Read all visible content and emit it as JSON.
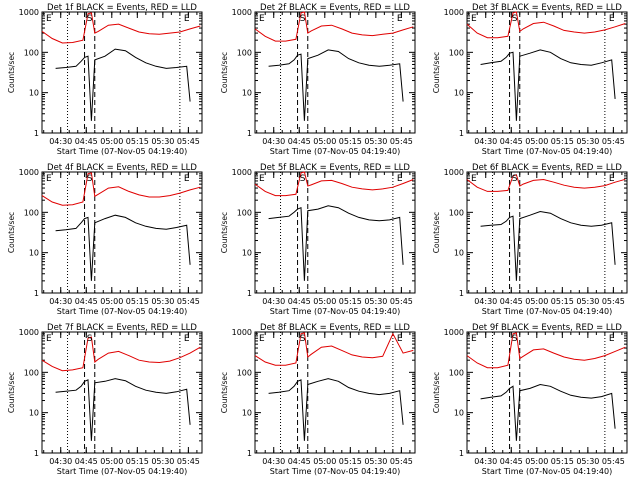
{
  "chart_data": [
    {
      "type": "line",
      "title": "Det 1f BLACK = Events, RED = LLD",
      "xlabel": "Start Time (07-Nov-05 04:19:40)",
      "ylabel": "Counts/sec",
      "yscale": "log",
      "ylim": [
        1,
        1000
      ],
      "yticks": [
        "1",
        "10",
        "100",
        "1000"
      ],
      "xticks": [
        "04:30",
        "04:45",
        "05:00",
        "05:15",
        "05:30",
        "05:45"
      ],
      "markers": [
        "E",
        "S",
        "E"
      ],
      "series": [
        {
          "name": "LLD",
          "color": "#e00000",
          "x": [
            "04:19",
            "04:25",
            "04:31",
            "04:37",
            "04:43",
            "04:46",
            "04:48",
            "04:50",
            "04:52",
            "04:58",
            "05:04",
            "05:10",
            "05:16",
            "05:22",
            "05:28",
            "05:34",
            "05:40",
            "05:46",
            "05:52"
          ],
          "values": [
            330,
            220,
            170,
            175,
            200,
            900,
            950,
            300,
            330,
            470,
            500,
            400,
            320,
            290,
            280,
            300,
            320,
            380,
            450
          ]
        },
        {
          "name": "Events",
          "color": "#000000",
          "x": [
            "04:27",
            "04:33",
            "04:39",
            "04:42",
            "04:44",
            "04:46",
            "04:48",
            "04:50",
            "04:56",
            "05:02",
            "05:08",
            "05:14",
            "05:20",
            "05:26",
            "05:32",
            "05:38",
            "05:44",
            "05:46"
          ],
          "values": [
            40,
            42,
            45,
            60,
            75,
            80,
            2,
            65,
            80,
            120,
            110,
            75,
            55,
            45,
            40,
            42,
            45,
            6
          ]
        }
      ]
    },
    {
      "type": "line",
      "title": "Det 2f BLACK = Events, RED = LLD",
      "xlabel": "Start Time (07-Nov-05 04:19:40)",
      "ylabel": "Counts/sec",
      "yscale": "log",
      "ylim": [
        1,
        1000
      ],
      "yticks": [
        "1",
        "10",
        "100",
        "1000"
      ],
      "xticks": [
        "04:30",
        "04:45",
        "05:00",
        "05:15",
        "05:30",
        "05:45"
      ],
      "markers": [
        "E",
        "S",
        "E"
      ],
      "series": [
        {
          "name": "LLD",
          "color": "#e00000",
          "x": [
            "04:19",
            "04:25",
            "04:31",
            "04:37",
            "04:43",
            "04:46",
            "04:48",
            "04:50",
            "04:52",
            "04:58",
            "05:04",
            "05:10",
            "05:16",
            "05:22",
            "05:28",
            "05:34",
            "05:40",
            "05:46",
            "05:52"
          ],
          "values": [
            380,
            250,
            190,
            190,
            210,
            950,
            1000,
            300,
            340,
            450,
            470,
            380,
            300,
            270,
            260,
            280,
            300,
            360,
            430
          ]
        },
        {
          "name": "Events",
          "color": "#000000",
          "x": [
            "04:27",
            "04:33",
            "04:39",
            "04:42",
            "04:44",
            "04:46",
            "04:48",
            "04:50",
            "04:56",
            "05:02",
            "05:08",
            "05:14",
            "05:20",
            "05:26",
            "05:32",
            "05:38",
            "05:44",
            "05:46"
          ],
          "values": [
            45,
            48,
            52,
            65,
            85,
            90,
            2,
            70,
            85,
            115,
            105,
            70,
            55,
            48,
            45,
            48,
            52,
            6
          ]
        }
      ]
    },
    {
      "type": "line",
      "title": "Det 3f BLACK = Events, RED = LLD",
      "xlabel": "Start Time (07-Nov-05 04:19:40)",
      "ylabel": "Counts/sec",
      "yscale": "log",
      "ylim": [
        1,
        1000
      ],
      "yticks": [
        "1",
        "10",
        "100",
        "1000"
      ],
      "xticks": [
        "04:30",
        "04:45",
        "05:00",
        "05:15",
        "05:30",
        "05:45"
      ],
      "markers": [
        "E",
        "S",
        "E"
      ],
      "series": [
        {
          "name": "LLD",
          "color": "#e00000",
          "x": [
            "04:19",
            "04:25",
            "04:31",
            "04:37",
            "04:43",
            "04:46",
            "04:48",
            "04:50",
            "04:52",
            "04:58",
            "05:04",
            "05:10",
            "05:16",
            "05:22",
            "05:28",
            "05:34",
            "05:40",
            "05:46",
            "05:52"
          ],
          "values": [
            500,
            300,
            230,
            230,
            250,
            950,
            1000,
            330,
            380,
            520,
            560,
            450,
            350,
            320,
            300,
            320,
            360,
            430,
            520
          ]
        },
        {
          "name": "Events",
          "color": "#000000",
          "x": [
            "04:27",
            "04:33",
            "04:39",
            "04:42",
            "04:44",
            "04:46",
            "04:48",
            "04:50",
            "04:56",
            "05:02",
            "05:08",
            "05:14",
            "05:20",
            "05:26",
            "05:32",
            "05:38",
            "05:44",
            "05:46"
          ],
          "values": [
            50,
            55,
            60,
            75,
            95,
            100,
            2,
            80,
            95,
            115,
            100,
            70,
            55,
            50,
            48,
            55,
            65,
            7
          ]
        }
      ]
    },
    {
      "type": "line",
      "title": "Det 4f BLACK = Events, RED = LLD",
      "xlabel": "Start Time (07-Nov-05 04:19:40)",
      "ylabel": "Counts/sec",
      "yscale": "log",
      "ylim": [
        1,
        1000
      ],
      "yticks": [
        "1",
        "10",
        "100",
        "1000"
      ],
      "xticks": [
        "04:30",
        "04:45",
        "05:00",
        "05:15",
        "05:30",
        "05:45"
      ],
      "markers": [
        "E",
        "S",
        "E"
      ],
      "series": [
        {
          "name": "LLD",
          "color": "#e00000",
          "x": [
            "04:19",
            "04:25",
            "04:31",
            "04:37",
            "04:43",
            "04:46",
            "04:48",
            "04:50",
            "04:52",
            "04:58",
            "05:04",
            "05:10",
            "05:16",
            "05:22",
            "05:28",
            "05:34",
            "05:40",
            "05:46",
            "05:52"
          ],
          "values": [
            260,
            180,
            150,
            155,
            180,
            900,
            950,
            250,
            280,
            400,
            430,
            330,
            270,
            240,
            240,
            260,
            300,
            360,
            420
          ]
        },
        {
          "name": "Events",
          "color": "#000000",
          "x": [
            "04:27",
            "04:33",
            "04:39",
            "04:42",
            "04:44",
            "04:46",
            "04:48",
            "04:50",
            "04:56",
            "05:02",
            "05:08",
            "05:14",
            "05:20",
            "05:26",
            "05:32",
            "05:38",
            "05:44",
            "05:46"
          ],
          "values": [
            35,
            37,
            40,
            55,
            70,
            75,
            2,
            55,
            70,
            85,
            75,
            55,
            45,
            40,
            38,
            42,
            48,
            5
          ]
        }
      ]
    },
    {
      "type": "line",
      "title": "Det 5f BLACK = Events, RED = LLD",
      "xlabel": "Start Time (07-Nov-05 04:19:40)",
      "ylabel": "Counts/sec",
      "yscale": "log",
      "ylim": [
        1,
        1000
      ],
      "yticks": [
        "1",
        "10",
        "100",
        "1000"
      ],
      "xticks": [
        "04:30",
        "04:45",
        "05:00",
        "05:15",
        "05:30",
        "05:45"
      ],
      "markers": [
        "E",
        "S",
        "E"
      ],
      "series": [
        {
          "name": "LLD",
          "color": "#e00000",
          "x": [
            "04:19",
            "04:25",
            "04:31",
            "04:37",
            "04:43",
            "04:46",
            "04:48",
            "04:50",
            "04:52",
            "04:58",
            "05:04",
            "05:10",
            "05:16",
            "05:22",
            "05:28",
            "05:34",
            "05:40",
            "05:46",
            "05:52"
          ],
          "values": [
            500,
            330,
            260,
            260,
            280,
            950,
            1000,
            450,
            480,
            600,
            620,
            520,
            420,
            380,
            360,
            380,
            420,
            520,
            650
          ]
        },
        {
          "name": "Events",
          "color": "#000000",
          "x": [
            "04:27",
            "04:33",
            "04:39",
            "04:42",
            "04:44",
            "04:46",
            "04:48",
            "04:50",
            "04:56",
            "05:02",
            "05:08",
            "05:14",
            "05:20",
            "05:26",
            "05:32",
            "05:38",
            "05:44",
            "05:46"
          ],
          "values": [
            70,
            75,
            80,
            100,
            120,
            130,
            2,
            110,
            120,
            145,
            130,
            95,
            75,
            65,
            62,
            65,
            75,
            5
          ]
        }
      ]
    },
    {
      "type": "line",
      "title": "Det 6f BLACK = Events, RED = LLD",
      "xlabel": "Start Time (07-Nov-05 04:19:40)",
      "ylabel": "Counts/sec",
      "yscale": "log",
      "ylim": [
        1,
        1000
      ],
      "yticks": [
        "1",
        "10",
        "100",
        "1000"
      ],
      "xticks": [
        "04:30",
        "04:45",
        "05:00",
        "05:15",
        "05:30",
        "05:45"
      ],
      "markers": [
        "E",
        "S",
        "E"
      ],
      "series": [
        {
          "name": "LLD",
          "color": "#e00000",
          "x": [
            "04:19",
            "04:25",
            "04:31",
            "04:37",
            "04:43",
            "04:46",
            "04:48",
            "04:50",
            "04:52",
            "04:58",
            "05:04",
            "05:10",
            "05:16",
            "05:22",
            "05:28",
            "05:34",
            "05:40",
            "05:46",
            "05:52"
          ],
          "values": [
            650,
            420,
            330,
            330,
            350,
            800,
            850,
            450,
            500,
            620,
            650,
            560,
            470,
            420,
            400,
            420,
            460,
            560,
            660
          ]
        },
        {
          "name": "Events",
          "color": "#000000",
          "x": [
            "04:27",
            "04:33",
            "04:39",
            "04:42",
            "04:44",
            "04:46",
            "04:48",
            "04:50",
            "04:56",
            "05:02",
            "05:08",
            "05:14",
            "05:20",
            "05:26",
            "05:32",
            "05:38",
            "05:44",
            "05:46"
          ],
          "values": [
            45,
            48,
            50,
            60,
            75,
            80,
            2,
            70,
            85,
            105,
            95,
            70,
            55,
            48,
            45,
            48,
            55,
            5
          ]
        }
      ]
    },
    {
      "type": "line",
      "title": "Det 7f BLACK = Events, RED = LLD",
      "xlabel": "Start Time (07-Nov-05 04:19:40)",
      "ylabel": "Counts/sec",
      "yscale": "log",
      "ylim": [
        1,
        1000
      ],
      "yticks": [
        "1",
        "10",
        "100",
        "1000"
      ],
      "xticks": [
        "04:30",
        "04:45",
        "05:00",
        "05:15",
        "05:30",
        "05:45"
      ],
      "markers": [
        "E",
        "S",
        "E"
      ],
      "series": [
        {
          "name": "LLD",
          "color": "#e00000",
          "x": [
            "04:19",
            "04:25",
            "04:31",
            "04:37",
            "04:43",
            "04:46",
            "04:48",
            "04:50",
            "04:52",
            "04:58",
            "05:04",
            "05:10",
            "05:16",
            "05:22",
            "05:28",
            "05:34",
            "05:40",
            "05:46",
            "05:52"
          ],
          "values": [
            200,
            140,
            110,
            115,
            130,
            700,
            750,
            180,
            210,
            300,
            330,
            260,
            200,
            180,
            175,
            190,
            230,
            300,
            420
          ]
        },
        {
          "name": "Events",
          "color": "#000000",
          "x": [
            "04:27",
            "04:33",
            "04:39",
            "04:42",
            "04:44",
            "04:46",
            "04:48",
            "04:50",
            "04:56",
            "05:02",
            "05:08",
            "05:14",
            "05:20",
            "05:26",
            "05:32",
            "05:38",
            "05:44",
            "05:46"
          ],
          "values": [
            32,
            34,
            36,
            45,
            60,
            65,
            2,
            55,
            60,
            70,
            62,
            45,
            36,
            32,
            30,
            33,
            38,
            5
          ]
        }
      ]
    },
    {
      "type": "line",
      "title": "Det 8f BLACK = Events, RED = LLD",
      "xlabel": "Start Time (07-Nov-05 04:19:40)",
      "ylabel": "Counts/sec",
      "yscale": "log",
      "ylim": [
        1,
        1000
      ],
      "yticks": [
        "1",
        "10",
        "100",
        "1000"
      ],
      "xticks": [
        "04:30",
        "04:45",
        "05:00",
        "05:15",
        "05:30",
        "05:45"
      ],
      "markers": [
        "E",
        "S",
        "E"
      ],
      "series": [
        {
          "name": "LLD",
          "color": "#e00000",
          "x": [
            "04:19",
            "04:25",
            "04:31",
            "04:37",
            "04:43",
            "04:46",
            "04:48",
            "04:50",
            "04:52",
            "04:58",
            "05:04",
            "05:10",
            "05:16",
            "05:22",
            "05:28",
            "05:34",
            "05:40",
            "05:46",
            "05:52"
          ],
          "values": [
            260,
            180,
            150,
            150,
            170,
            900,
            950,
            240,
            280,
            420,
            450,
            350,
            270,
            240,
            230,
            250,
            900,
            300,
            350
          ]
        },
        {
          "name": "Events",
          "color": "#000000",
          "x": [
            "04:27",
            "04:33",
            "04:39",
            "04:42",
            "04:44",
            "04:46",
            "04:48",
            "04:50",
            "04:56",
            "05:02",
            "05:08",
            "05:14",
            "05:20",
            "05:26",
            "05:32",
            "05:38",
            "05:44",
            "05:46"
          ],
          "values": [
            30,
            32,
            35,
            45,
            60,
            65,
            2,
            50,
            60,
            70,
            60,
            42,
            34,
            30,
            28,
            30,
            35,
            5
          ]
        }
      ]
    },
    {
      "type": "line",
      "title": "Det 9f BLACK = Events, RED = LLD",
      "xlabel": "Start Time (07-Nov-05 04:19:40)",
      "ylabel": "Counts/sec",
      "yscale": "log",
      "ylim": [
        1,
        1000
      ],
      "yticks": [
        "1",
        "10",
        "100",
        "1000"
      ],
      "xticks": [
        "04:30",
        "04:45",
        "05:00",
        "05:15",
        "05:30",
        "05:45"
      ],
      "markers": [
        "E",
        "S",
        "E"
      ],
      "series": [
        {
          "name": "LLD",
          "color": "#e00000",
          "x": [
            "04:19",
            "04:25",
            "04:31",
            "04:37",
            "04:43",
            "04:46",
            "04:48",
            "04:50",
            "04:52",
            "04:58",
            "05:04",
            "05:10",
            "05:16",
            "05:22",
            "05:28",
            "05:34",
            "05:40",
            "05:46",
            "05:52"
          ],
          "values": [
            260,
            170,
            130,
            130,
            150,
            900,
            950,
            220,
            250,
            360,
            380,
            300,
            240,
            210,
            200,
            220,
            260,
            330,
            420
          ]
        },
        {
          "name": "Events",
          "color": "#000000",
          "x": [
            "04:27",
            "04:33",
            "04:39",
            "04:42",
            "04:44",
            "04:46",
            "04:48",
            "04:50",
            "04:56",
            "05:02",
            "05:08",
            "05:14",
            "05:20",
            "05:26",
            "05:32",
            "05:38",
            "05:44",
            "05:46"
          ],
          "values": [
            22,
            24,
            26,
            32,
            40,
            45,
            2,
            35,
            40,
            50,
            45,
            34,
            27,
            24,
            23,
            25,
            30,
            4
          ]
        }
      ]
    }
  ]
}
